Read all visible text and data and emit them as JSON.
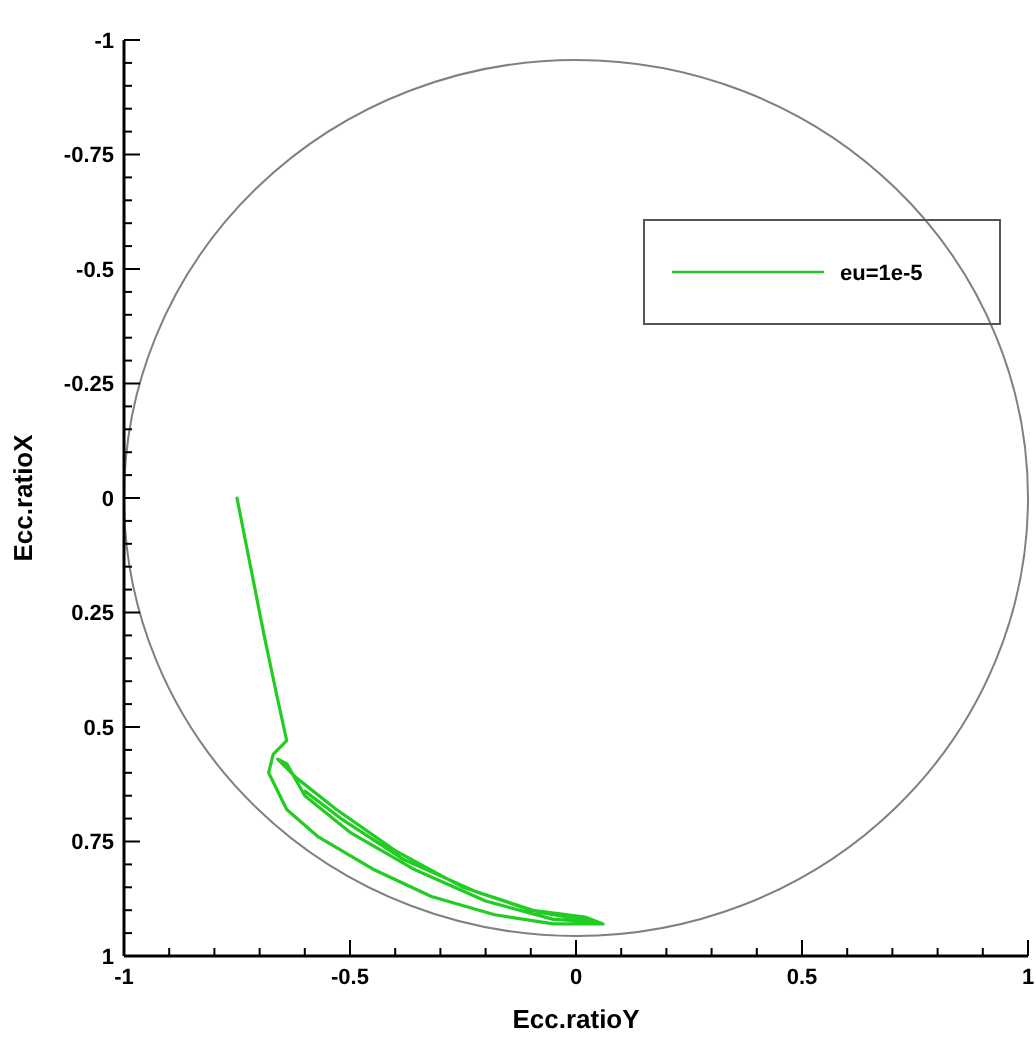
{
  "chart_data": {
    "type": "line",
    "xlabel": "Ecc.ratioY",
    "ylabel": "Ecc.ratioX",
    "xlim": [
      -1,
      1
    ],
    "ylim": [
      1,
      -1
    ],
    "xticks": [
      -1,
      {
        "value": -0.9,
        "label": null
      },
      {
        "value": -0.8,
        "label": null
      },
      {
        "value": -0.7,
        "label": null
      },
      {
        "value": -0.6,
        "label": null
      },
      -0.5,
      {
        "value": -0.4,
        "label": null
      },
      {
        "value": -0.3,
        "label": null
      },
      {
        "value": -0.2,
        "label": null
      },
      {
        "value": -0.1,
        "label": null
      },
      0,
      {
        "value": 0.1,
        "label": null
      },
      {
        "value": 0.2,
        "label": null
      },
      {
        "value": 0.3,
        "label": null
      },
      {
        "value": 0.4,
        "label": null
      },
      0.5,
      {
        "value": 0.6,
        "label": null
      },
      {
        "value": 0.7,
        "label": null
      },
      {
        "value": 0.8,
        "label": null
      },
      {
        "value": 0.9,
        "label": null
      },
      1
    ],
    "yticks": [
      -1,
      {
        "value": -0.95,
        "label": null
      },
      {
        "value": -0.9,
        "label": null
      },
      {
        "value": -0.85,
        "label": null
      },
      {
        "value": -0.8,
        "label": null
      },
      -0.75,
      {
        "value": -0.7,
        "label": null
      },
      {
        "value": -0.65,
        "label": null
      },
      {
        "value": -0.6,
        "label": null
      },
      {
        "value": -0.55,
        "label": null
      },
      -0.5,
      {
        "value": -0.45,
        "label": null
      },
      {
        "value": -0.4,
        "label": null
      },
      {
        "value": -0.35,
        "label": null
      },
      {
        "value": -0.3,
        "label": null
      },
      -0.25,
      {
        "value": -0.2,
        "label": null
      },
      {
        "value": -0.15,
        "label": null
      },
      {
        "value": -0.1,
        "label": null
      },
      {
        "value": -0.05,
        "label": null
      },
      0,
      {
        "value": 0.05,
        "label": null
      },
      {
        "value": 0.1,
        "label": null
      },
      {
        "value": 0.15,
        "label": null
      },
      {
        "value": 0.2,
        "label": null
      },
      0.25,
      {
        "value": 0.3,
        "label": null
      },
      {
        "value": 0.35,
        "label": null
      },
      {
        "value": 0.4,
        "label": null
      },
      {
        "value": 0.45,
        "label": null
      },
      0.5,
      {
        "value": 0.55,
        "label": null
      },
      {
        "value": 0.6,
        "label": null
      },
      {
        "value": 0.65,
        "label": null
      },
      {
        "value": 0.7,
        "label": null
      },
      0.75,
      {
        "value": 0.8,
        "label": null
      },
      {
        "value": 0.85,
        "label": null
      },
      {
        "value": 0.9,
        "label": null
      },
      {
        "value": 0.95,
        "label": null
      },
      1
    ],
    "grid": false,
    "legend": "top right",
    "line_style": "solid",
    "series": [
      {
        "name": "eu=1e-5",
        "color": "#22cc22",
        "x": [
          -0.75,
          -0.72,
          -0.69,
          -0.66,
          -0.64,
          -0.67,
          -0.68,
          -0.64,
          -0.57,
          -0.45,
          -0.32,
          -0.18,
          -0.05,
          0.06,
          0.02,
          -0.1,
          -0.25,
          -0.4,
          -0.53,
          -0.62,
          -0.66,
          -0.64,
          -0.6,
          -0.5,
          -0.36,
          -0.2,
          -0.05,
          0.04,
          -0.08,
          -0.22,
          -0.38,
          -0.52,
          -0.6
        ],
        "values": [
          0,
          0.15,
          0.3,
          0.44,
          0.53,
          0.56,
          0.6,
          0.68,
          0.74,
          0.81,
          0.87,
          0.91,
          0.93,
          0.93,
          0.915,
          0.9,
          0.85,
          0.77,
          0.68,
          0.61,
          0.57,
          0.58,
          0.65,
          0.73,
          0.81,
          0.88,
          0.92,
          0.925,
          0.905,
          0.86,
          0.79,
          0.7,
          0.64
        ]
      }
    ]
  }
}
